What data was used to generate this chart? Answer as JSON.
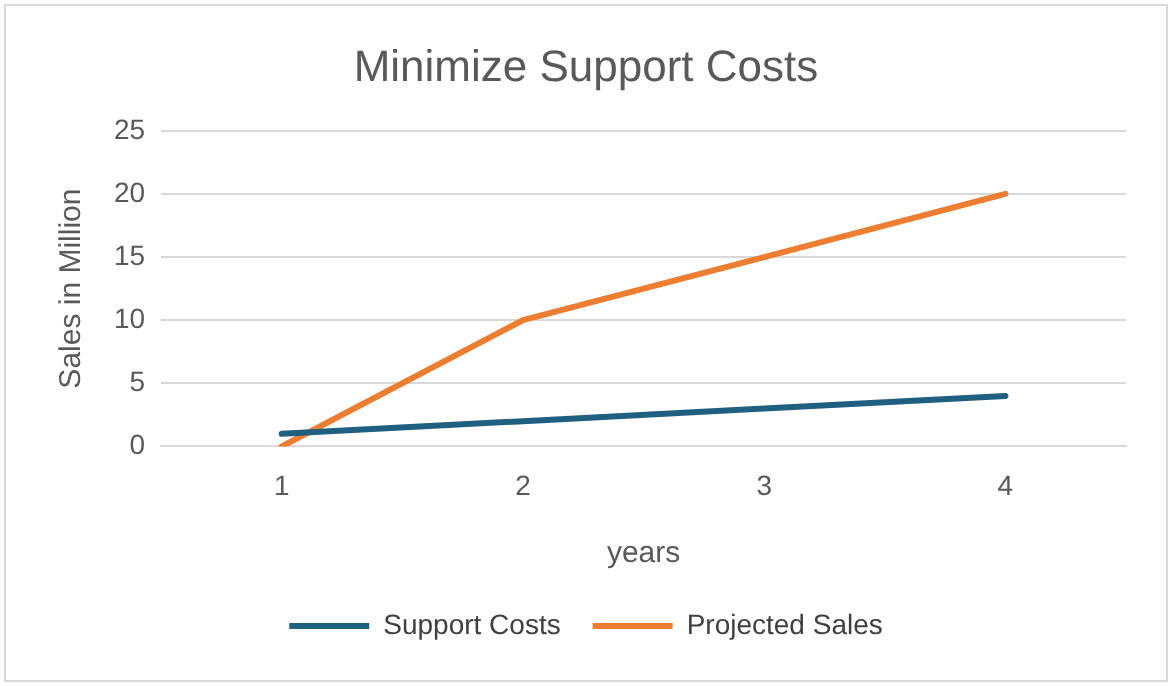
{
  "chart_data": {
    "type": "line",
    "title": "Minimize Support Costs",
    "xlabel": "years",
    "ylabel": "Sales in Million",
    "categories": [
      "1",
      "2",
      "3",
      "4"
    ],
    "series": [
      {
        "name": "Support Costs",
        "color": "#1f5f7f",
        "values": [
          1,
          2,
          3,
          4
        ]
      },
      {
        "name": "Projected Sales",
        "color": "#ed7d31",
        "values": [
          0,
          10,
          15,
          20
        ]
      }
    ],
    "ylim": [
      0,
      25
    ],
    "yticks": [
      0,
      5,
      10,
      15,
      20,
      25
    ],
    "grid": "y",
    "legend": "bottom",
    "marker": "none",
    "line_style": "solid"
  }
}
